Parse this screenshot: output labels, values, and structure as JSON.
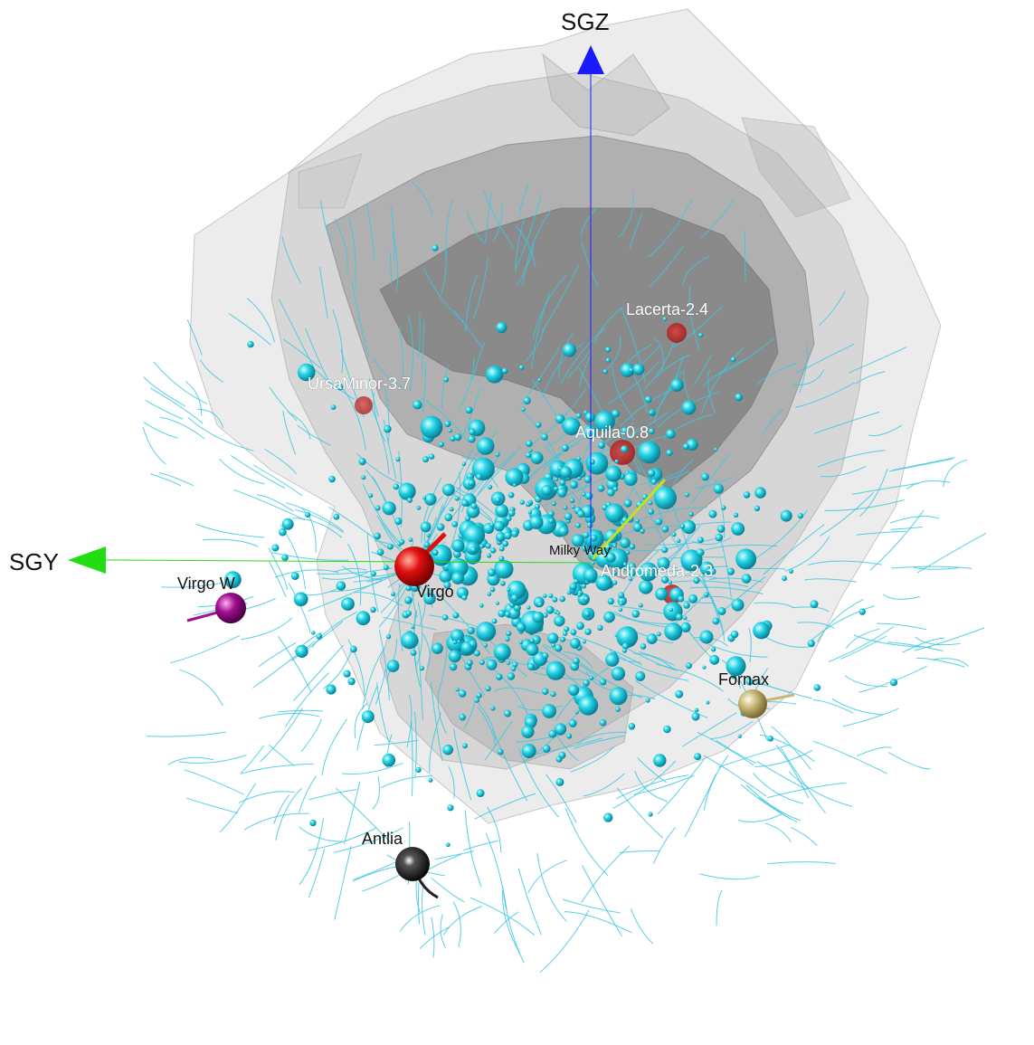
{
  "axes": {
    "z_label": "SGZ",
    "y_label": "SGY",
    "z_color": "#1a1aff",
    "y_color": "#22dd11"
  },
  "colors": {
    "flow_lines": "#3cc8e0",
    "galaxies": "#17d0e0",
    "void_surface": "#808080",
    "void_centers": "#d02020"
  },
  "attractors": {
    "virgo": {
      "label": "Virgo",
      "color": "#e01010"
    },
    "virgo_w": {
      "label": "Virgo W",
      "color": "#a01090"
    },
    "fornax": {
      "label": "Fornax",
      "color": "#c8b878"
    },
    "antlia": {
      "label": "Antlia",
      "color": "#1a1a1a"
    }
  },
  "observer": {
    "label": "Milky Way"
  },
  "voids": {
    "lacerta": {
      "label": "Lacerta-2.4"
    },
    "ursa_minor": {
      "label": "UrsaMinor-3.7"
    },
    "aquila": {
      "label": "Aquila-0.8"
    },
    "andromeda": {
      "label": "Andromeda-2.3"
    }
  }
}
